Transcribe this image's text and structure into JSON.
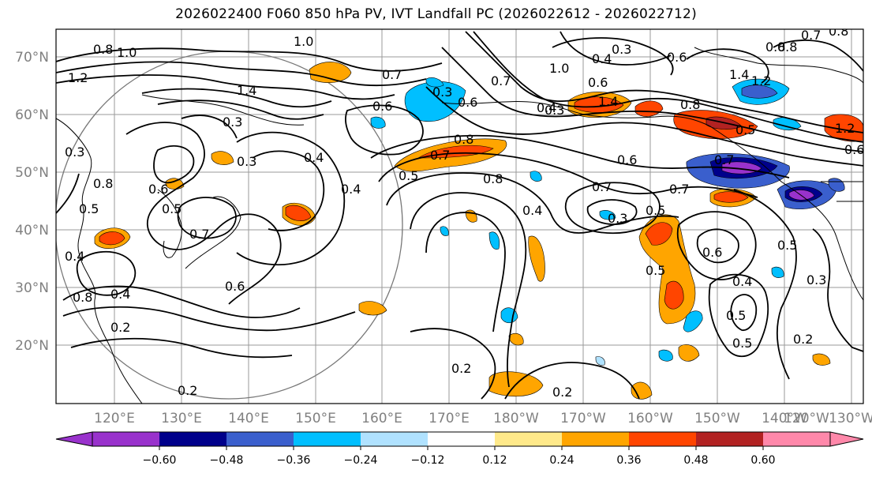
{
  "title": "2026022400 F060 850 hPa PV, IVT Landfall PC (2026022612 - 2026022712)",
  "lat_labels": [
    "70°N",
    "60°N",
    "50°N",
    "40°N",
    "30°N",
    "20°N"
  ],
  "lon_labels": [
    "120°E",
    "130°E",
    "140°E",
    "150°E",
    "160°E",
    "170°E",
    "180°W",
    "170°W",
    "160°W",
    "150°W",
    "140°W",
    "130°W",
    "120°W"
  ],
  "colorbar": {
    "ticks": [
      "−0.60",
      "−0.48",
      "−0.36",
      "−0.24",
      "−0.12",
      "0.12",
      "0.24",
      "0.36",
      "0.48",
      "0.60"
    ],
    "colors": [
      "#9932cc",
      "#00008b",
      "#3a5fcd",
      "#00bfff",
      "#b0e2ff",
      "#ffffff",
      "#ffe98a",
      "#ffa500",
      "#ff4500",
      "#b22222",
      "#ff88aa"
    ]
  },
  "contour_labels": [
    "1.0",
    "0.8",
    "1.2",
    "1.4",
    "1.0",
    "0.3",
    "0.4",
    "0.5",
    "0.7",
    "0.6",
    "0.8",
    "0.4",
    "0.6",
    "0.7",
    "0.3",
    "0.5",
    "0.8",
    "0.2",
    "0.8",
    "0.4",
    "0.5",
    "0.3",
    "0.5",
    "0.6",
    "0.7",
    "0.8",
    "0.6",
    "1.0",
    "0.4",
    "0.6",
    "0.8",
    "0.7",
    "0.3",
    "0.7",
    "0.6",
    "0.8",
    "0.4",
    "0.5",
    "0.2",
    "0.4",
    "1.4",
    "0.3",
    "0.7",
    "0.4",
    "0.8",
    "0.6",
    "0.5",
    "1.4",
    "1.2",
    "1.2",
    "0.7",
    "0.8",
    "0.3",
    "0.5",
    "0.2",
    "0.5",
    "0.4",
    "0.3",
    "0.6",
    "0.2",
    "0.3",
    "0.5",
    "0.6",
    "0.7",
    "0.2"
  ]
}
